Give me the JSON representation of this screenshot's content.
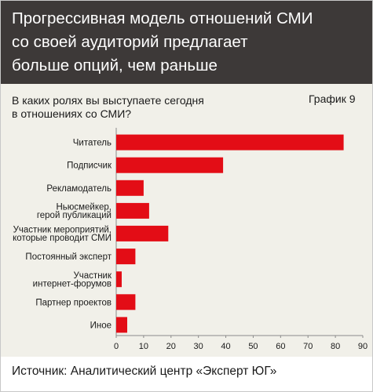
{
  "header": {
    "title_lines": [
      "Прогрессивная модель отношений СМИ",
      "со своей аудиторий предлагает",
      "больше опций, чем раньше"
    ]
  },
  "question_lines": [
    "В каких ролях вы выступаете сегодня",
    "в отношениях со СМИ?"
  ],
  "chart_number": "График 9",
  "source": "Источник: Аналитический центр «Эксперт ЮГ»",
  "colors": {
    "bar": "#e30d16",
    "header_bg": "#3d3938",
    "panel_bg": "#f1f0e9"
  },
  "chart_data": {
    "type": "bar",
    "orientation": "horizontal",
    "categories": [
      [
        "Читатель"
      ],
      [
        "Подписчик"
      ],
      [
        "Рекламодатель"
      ],
      [
        "Ньюсмейкер,",
        "герой публикаций"
      ],
      [
        "Участник мероприятий,",
        "которые проводит СМИ"
      ],
      [
        "Постоянный эксперт"
      ],
      [
        "Участник",
        "интернет-форумов"
      ],
      [
        "Партнер проектов"
      ],
      [
        "Иное"
      ]
    ],
    "values": [
      83,
      39,
      10,
      12,
      19,
      7,
      2,
      7,
      4
    ],
    "xlim": [
      0,
      90
    ],
    "xticks": [
      0,
      10,
      20,
      30,
      40,
      50,
      60,
      70,
      80,
      90
    ]
  }
}
